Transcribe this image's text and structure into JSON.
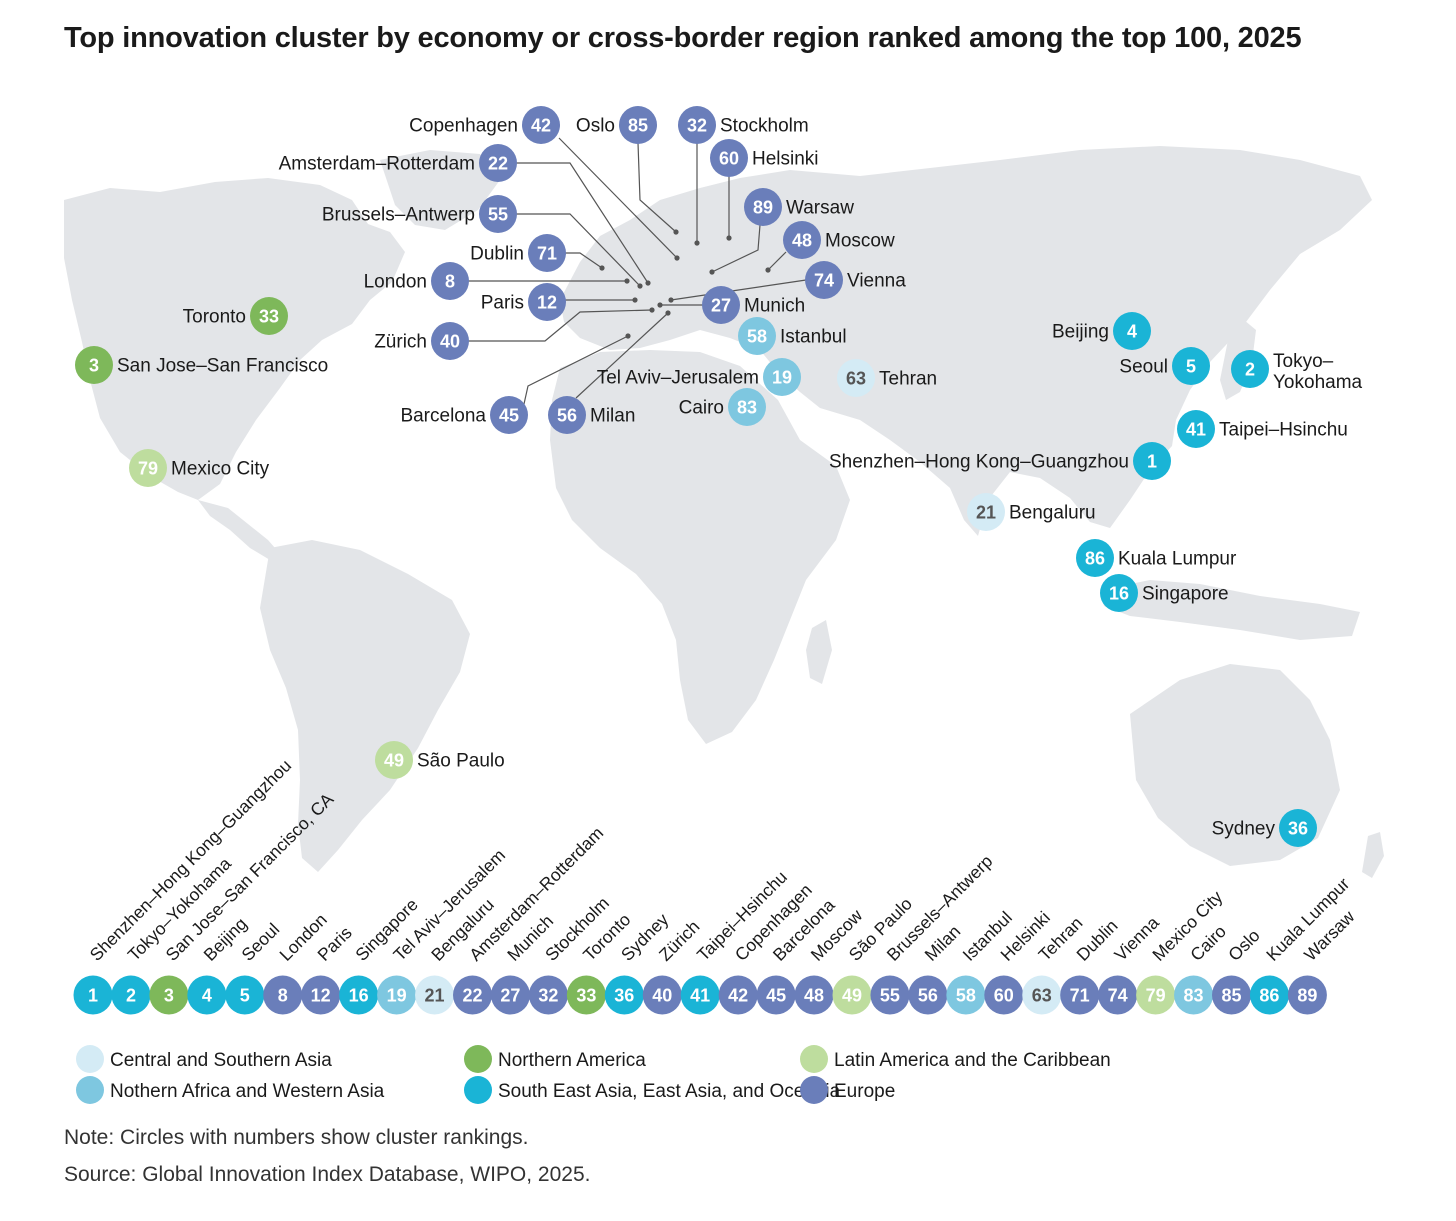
{
  "title": "Top innovation cluster by economy or cross-border region ranked among the top 100, 2025",
  "note": "Note: Circles with numbers show cluster rankings.",
  "source": "Source: Global Innovation Index Database, WIPO, 2025.",
  "colors": {
    "land": "#e3e5e8",
    "leader": "#555555",
    "label": "#1a1a1a",
    "text_on_light": "#555555"
  },
  "regions": [
    {
      "key": "csa",
      "label": "Central and Southern Asia",
      "color": "#d4ebf5"
    },
    {
      "key": "naw",
      "label": "Nothern Africa and Western Asia",
      "color": "#7ec7e0"
    },
    {
      "key": "nam",
      "label": "Northern America",
      "color": "#7eb85a"
    },
    {
      "key": "seo",
      "label": "South East Asia, East Asia, and Oceania",
      "color": "#1ab4d6"
    },
    {
      "key": "lac",
      "label": "Latin America and the Caribbean",
      "color": "#bedd9e"
    },
    {
      "key": "eur",
      "label": "Europe",
      "color": "#6a7eba"
    }
  ],
  "clusters": [
    {
      "rank": 1,
      "map_label": "Shenzhen–Hong Kong–Guangzhou",
      "strip_label": "Shenzhen–Hong Kong–Guangzhou",
      "region": "seo"
    },
    {
      "rank": 2,
      "map_label": "Tokyo–\nYokohama",
      "strip_label": "Tokyo–Yokohama",
      "region": "seo"
    },
    {
      "rank": 3,
      "map_label": "San Jose–San Francisco",
      "strip_label": "San Jose–San Francisco, CA",
      "region": "nam"
    },
    {
      "rank": 4,
      "map_label": "Beijing",
      "strip_label": "Beijing",
      "region": "seo"
    },
    {
      "rank": 5,
      "map_label": "Seoul",
      "strip_label": "Seoul",
      "region": "seo"
    },
    {
      "rank": 8,
      "map_label": "London",
      "strip_label": "London",
      "region": "eur"
    },
    {
      "rank": 12,
      "map_label": "Paris",
      "strip_label": "Paris",
      "region": "eur"
    },
    {
      "rank": 16,
      "map_label": "Singapore",
      "strip_label": "Singapore",
      "region": "seo"
    },
    {
      "rank": 19,
      "map_label": "Tel Aviv–Jerusalem",
      "strip_label": "Tel Aviv–Jerusalem",
      "region": "naw"
    },
    {
      "rank": 21,
      "map_label": "Bengaluru",
      "strip_label": "Bengaluru",
      "region": "csa"
    },
    {
      "rank": 22,
      "map_label": "Amsterdam–Rotterdam",
      "strip_label": "Amsterdam–Rotterdam",
      "region": "eur"
    },
    {
      "rank": 27,
      "map_label": "Munich",
      "strip_label": "Munich",
      "region": "eur"
    },
    {
      "rank": 32,
      "map_label": "Stockholm",
      "strip_label": "Stockholm",
      "region": "eur"
    },
    {
      "rank": 33,
      "map_label": "Toronto",
      "strip_label": "Toronto",
      "region": "nam"
    },
    {
      "rank": 36,
      "map_label": "Sydney",
      "strip_label": "Sydney",
      "region": "seo"
    },
    {
      "rank": 40,
      "map_label": "Zürich",
      "strip_label": "Zürich",
      "region": "eur"
    },
    {
      "rank": 41,
      "map_label": "Taipei–Hsinchu",
      "strip_label": "Taipei–Hsinchu",
      "region": "seo"
    },
    {
      "rank": 42,
      "map_label": "Copenhagen",
      "strip_label": "Copenhagen",
      "region": "eur"
    },
    {
      "rank": 45,
      "map_label": "Barcelona",
      "strip_label": "Barcelona",
      "region": "eur"
    },
    {
      "rank": 48,
      "map_label": "Moscow",
      "strip_label": "Moscow",
      "region": "eur"
    },
    {
      "rank": 49,
      "map_label": "São Paulo",
      "strip_label": "São Paulo",
      "region": "lac"
    },
    {
      "rank": 55,
      "map_label": "Brussels–Antwerp",
      "strip_label": "Brussels–Antwerp",
      "region": "eur"
    },
    {
      "rank": 56,
      "map_label": "Milan",
      "strip_label": "Milan",
      "region": "eur"
    },
    {
      "rank": 58,
      "map_label": "Istanbul",
      "strip_label": "Istanbul",
      "region": "naw"
    },
    {
      "rank": 60,
      "map_label": "Helsinki",
      "strip_label": "Helsinki",
      "region": "eur"
    },
    {
      "rank": 63,
      "map_label": "Tehran",
      "strip_label": "Tehran",
      "region": "csa"
    },
    {
      "rank": 71,
      "map_label": "Dublin",
      "strip_label": "Dublin",
      "region": "eur"
    },
    {
      "rank": 74,
      "map_label": "Vienna",
      "strip_label": "Vienna",
      "region": "eur"
    },
    {
      "rank": 79,
      "map_label": "Mexico City",
      "strip_label": "Mexico City",
      "region": "lac"
    },
    {
      "rank": 83,
      "map_label": "Cairo",
      "strip_label": "Cairo",
      "region": "naw"
    },
    {
      "rank": 85,
      "map_label": "Oslo",
      "strip_label": "Oslo",
      "region": "eur"
    },
    {
      "rank": 86,
      "map_label": "Kuala Lumpur",
      "strip_label": "Kuala Lumpur",
      "region": "seo"
    },
    {
      "rank": 89,
      "map_label": "Warsaw",
      "strip_label": "Warsaw",
      "region": "eur"
    }
  ]
}
